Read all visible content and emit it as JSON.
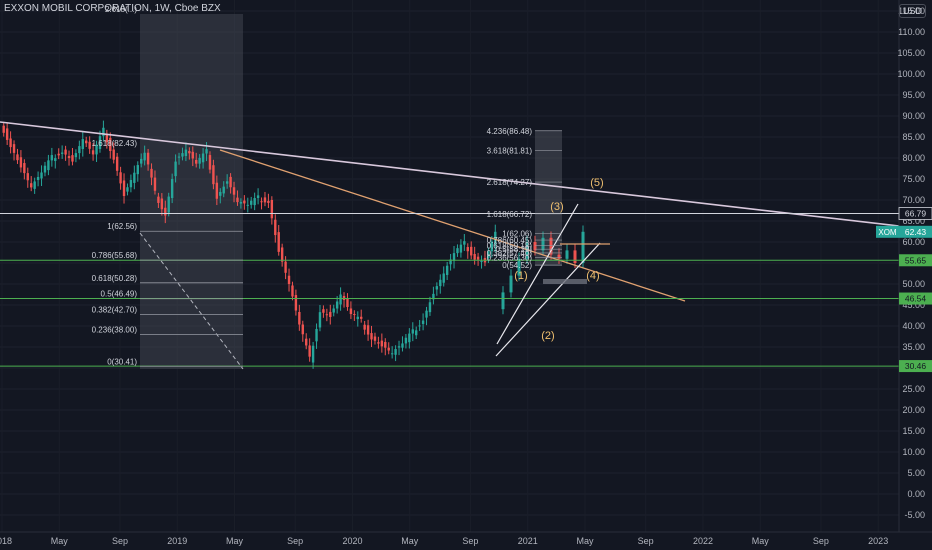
{
  "header": {
    "title": "EXXON MOBIL CORPORATION, 1W, Cboe BZX",
    "currency": "USD"
  },
  "chart_data": {
    "type": "candlestick",
    "ylim": [
      -6.5,
      119
    ],
    "y_ticks": [
      "115.00",
      "110.00",
      "105.00",
      "100.00",
      "95.00",
      "90.00",
      "85.00",
      "80.00",
      "75.00",
      "70.00",
      "65.00",
      "60.00",
      "55.00",
      "50.00",
      "45.00",
      "40.00",
      "35.00",
      "30.00",
      "25.00",
      "20.00",
      "15.00",
      "10.00",
      "5.00",
      "0.00",
      "-5.00"
    ],
    "x_ticks": [
      "2018",
      "May",
      "Sep",
      "2019",
      "May",
      "Sep",
      "2020",
      "May",
      "Sep",
      "2021",
      "May",
      "Sep",
      "2022",
      "May",
      "Sep",
      "2023"
    ],
    "price_labels": [
      {
        "text": "66.79",
        "value": 66.79,
        "color": "#d1d4dc",
        "bg": "#131722"
      },
      {
        "text": "XOM",
        "value": 62.43,
        "color": "#ffffff",
        "bg": "#26a69a"
      },
      {
        "text": "62.43",
        "value": 62.43,
        "color": "#ffffff",
        "bg": "#26a69a"
      },
      {
        "text": "55.65",
        "value": 55.65,
        "color": "#131722",
        "bg": "#4caf50"
      },
      {
        "text": "46.54",
        "value": 46.54,
        "color": "#131722",
        "bg": "#4caf50"
      },
      {
        "text": "30.46",
        "value": 30.46,
        "color": "#131722",
        "bg": "#4caf50"
      }
    ],
    "fib_left_labels": [
      "1(62.56)",
      "0.786(55.68)",
      "0.618(50.28)",
      "0.5(46.49)",
      "0.382(42.70)",
      "0.236(38.00)",
      "0(30.41)"
    ],
    "fib_left_values": [
      62.56,
      55.68,
      50.28,
      46.49,
      42.7,
      38.0,
      30.41
    ],
    "fib_ext_label": "1.618(82.43)",
    "fib_ext_value": 82.43,
    "fib_top_label": "2.618(...)",
    "fib_right_labels": [
      "4.236(86.48)",
      "3.618(81.81)",
      "2.618(74.27)",
      "1.618(66.72)",
      "1(62.06)",
      "0.786(60.45)",
      "0.618(59.18)",
      "0.5(58.29)",
      "0.382(57.40)",
      "0.236(56.30)",
      "0(54.52)"
    ],
    "fib_right_values": [
      86.48,
      81.81,
      74.27,
      66.72,
      62.06,
      60.45,
      59.18,
      58.29,
      57.4,
      56.3,
      54.52
    ],
    "wave_labels": [
      "(1)",
      "(2)",
      "(3)",
      "(4)",
      "(5)"
    ],
    "wave_values": [
      47.5,
      37.8,
      69.5,
      48.0,
      74.0
    ],
    "candles": [
      [
        88.4,
        83.3
      ],
      [
        83.3,
        78.1
      ],
      [
        78.1,
        73.0
      ],
      [
        73.0,
        76.2
      ],
      [
        76.2,
        80.0
      ],
      [
        80.0,
        82.0
      ],
      [
        82.0,
        79.5
      ],
      [
        79.5,
        84.5
      ],
      [
        84.5,
        80.5
      ],
      [
        80.5,
        86.5
      ],
      [
        86.5,
        80.3
      ],
      [
        80.3,
        71.3
      ],
      [
        71.3,
        76.5
      ],
      [
        76.5,
        80.9
      ],
      [
        80.9,
        71.5
      ],
      [
        71.5,
        67.0
      ],
      [
        67.0,
        79.5
      ],
      [
        79.5,
        82.0
      ],
      [
        82.0,
        78.3
      ],
      [
        78.3,
        81.4
      ],
      [
        81.4,
        71.0
      ],
      [
        71.0,
        74.8
      ],
      [
        74.8,
        69.5
      ],
      [
        69.5,
        68.5
      ],
      [
        68.5,
        70.4
      ],
      [
        70.4,
        70.0
      ],
      [
        70.0,
        58.0
      ],
      [
        58.0,
        50.0
      ],
      [
        50.0,
        40.0
      ],
      [
        40.0,
        32.0
      ],
      [
        32.0,
        44.0
      ],
      [
        44.0,
        42.5
      ],
      [
        42.5,
        47.5
      ],
      [
        47.5,
        42.5
      ],
      [
        42.5,
        41.0
      ],
      [
        41.0,
        37.5
      ],
      [
        37.5,
        35.5
      ],
      [
        35.5,
        33.5
      ],
      [
        33.5,
        35.5
      ],
      [
        35.5,
        38.5
      ],
      [
        38.5,
        42.0
      ],
      [
        42.0,
        48.0
      ],
      [
        48.0,
        52.5
      ],
      [
        52.5,
        57.0
      ],
      [
        57.0,
        59.5
      ],
      [
        59.5,
        56.5
      ],
      [
        56.5,
        55.5
      ],
      [
        55.5,
        62.43
      ]
    ]
  }
}
